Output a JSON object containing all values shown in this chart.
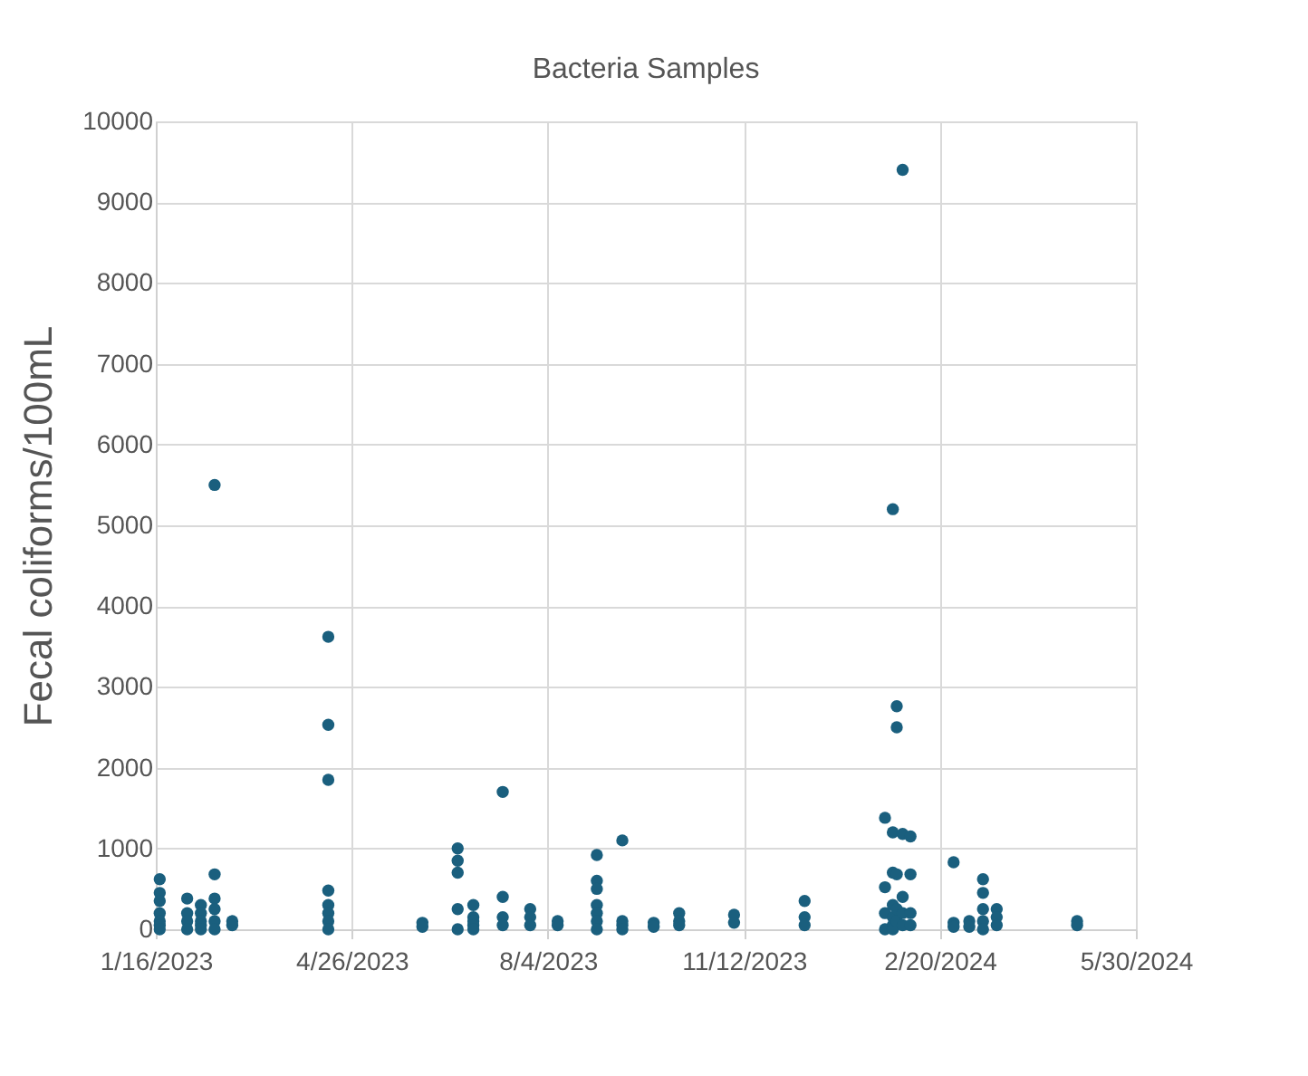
{
  "chart_data": {
    "type": "scatter",
    "title": "Bacteria Samples",
    "ylabel": "Fecal coliforms/100mL",
    "series": [
      {
        "color": "#1a5f7e",
        "x": [
          "2023-01-18",
          "2023-01-18",
          "2023-01-18",
          "2023-01-18",
          "2023-01-18",
          "2023-01-18",
          "2023-01-18",
          "2023-02-01",
          "2023-02-01",
          "2023-02-01",
          "2023-02-01",
          "2023-02-08",
          "2023-02-08",
          "2023-02-08",
          "2023-02-08",
          "2023-02-08",
          "2023-02-15",
          "2023-02-15",
          "2023-02-15",
          "2023-02-15",
          "2023-02-15",
          "2023-02-15",
          "2023-02-24",
          "2023-02-24",
          "2023-04-14",
          "2023-04-14",
          "2023-04-14",
          "2023-04-14",
          "2023-04-14",
          "2023-04-14",
          "2023-04-14",
          "2023-04-14",
          "2023-06-01",
          "2023-06-01",
          "2023-06-19",
          "2023-06-19",
          "2023-06-19",
          "2023-06-19",
          "2023-06-19",
          "2023-06-27",
          "2023-06-27",
          "2023-06-27",
          "2023-06-27",
          "2023-06-27",
          "2023-07-12",
          "2023-07-12",
          "2023-07-12",
          "2023-07-12",
          "2023-07-26",
          "2023-07-26",
          "2023-07-26",
          "2023-08-09",
          "2023-08-09",
          "2023-08-29",
          "2023-08-29",
          "2023-08-29",
          "2023-08-29",
          "2023-08-29",
          "2023-08-29",
          "2023-08-29",
          "2023-09-11",
          "2023-09-11",
          "2023-09-11",
          "2023-09-11",
          "2023-09-27",
          "2023-09-27",
          "2023-10-10",
          "2023-10-10",
          "2023-10-10",
          "2023-11-07",
          "2023-11-07",
          "2023-12-13",
          "2023-12-13",
          "2023-12-13",
          "2024-01-23",
          "2024-01-23",
          "2024-01-23",
          "2024-01-23",
          "2024-01-27",
          "2024-01-27",
          "2024-01-27",
          "2024-01-27",
          "2024-01-27",
          "2024-01-27",
          "2024-01-27",
          "2024-01-29",
          "2024-01-29",
          "2024-01-29",
          "2024-01-29",
          "2024-01-29",
          "2024-02-01",
          "2024-02-01",
          "2024-02-01",
          "2024-02-01",
          "2024-02-01",
          "2024-02-05",
          "2024-02-05",
          "2024-02-05",
          "2024-02-05",
          "2024-02-27",
          "2024-02-27",
          "2024-02-27",
          "2024-03-06",
          "2024-03-06",
          "2024-03-13",
          "2024-03-13",
          "2024-03-13",
          "2024-03-13",
          "2024-03-13",
          "2024-03-20",
          "2024-03-20",
          "2024-03-20",
          "2024-04-30",
          "2024-04-30"
        ],
        "values": [
          620,
          450,
          350,
          200,
          100,
          50,
          0,
          380,
          200,
          100,
          0,
          300,
          200,
          100,
          50,
          0,
          5500,
          680,
          380,
          250,
          100,
          0,
          100,
          50,
          3620,
          2530,
          1850,
          480,
          300,
          200,
          100,
          0,
          80,
          30,
          1000,
          850,
          700,
          250,
          0,
          300,
          150,
          100,
          50,
          0,
          1700,
          400,
          150,
          50,
          250,
          150,
          50,
          100,
          50,
          920,
          600,
          500,
          300,
          200,
          100,
          0,
          1100,
          100,
          50,
          0,
          80,
          30,
          200,
          100,
          50,
          180,
          80,
          350,
          150,
          50,
          1380,
          520,
          200,
          0,
          5200,
          1200,
          700,
          300,
          150,
          50,
          0,
          2760,
          2500,
          680,
          250,
          100,
          9400,
          1180,
          400,
          200,
          50,
          1150,
          680,
          200,
          50,
          830,
          80,
          30,
          100,
          30,
          620,
          450,
          250,
          100,
          0,
          250,
          150,
          50,
          100,
          50
        ]
      }
    ],
    "xlim": [
      "2023-01-16",
      "2024-05-30"
    ],
    "xticks": [
      {
        "value": "2023-01-16",
        "label": "1/16/2023"
      },
      {
        "value": "2023-04-26",
        "label": "4/26/2023"
      },
      {
        "value": "2023-08-04",
        "label": "8/4/2023"
      },
      {
        "value": "2023-11-12",
        "label": "11/12/2023"
      },
      {
        "value": "2024-02-20",
        "label": "2/20/2024"
      },
      {
        "value": "2024-05-30",
        "label": "5/30/2024"
      }
    ],
    "ylim": [
      0,
      10000
    ],
    "yticks": [
      0,
      1000,
      2000,
      3000,
      4000,
      5000,
      6000,
      7000,
      8000,
      9000,
      10000
    ],
    "grid": true,
    "marker": "circle"
  }
}
